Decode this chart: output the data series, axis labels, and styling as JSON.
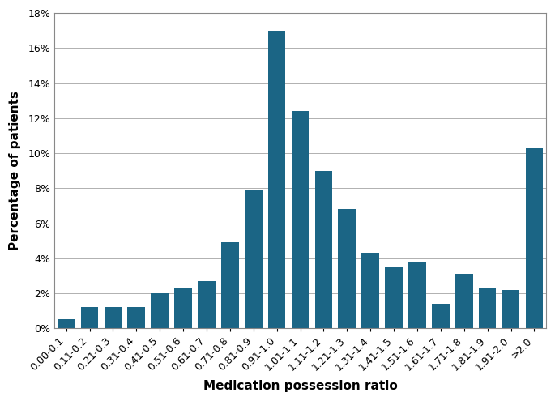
{
  "categories": [
    "0.00-0.1",
    "0.11-0.2",
    "0.21-0.3",
    "0.31-0.4",
    "0.41-0.5",
    "0.51-0.6",
    "0.61-0.7",
    "0.71-0.8",
    "0.81-0.9",
    "0.91-1.0",
    "1.01-1.1",
    "1.11-1.2",
    "1.21-1.3",
    "1.31-1.4",
    "1.41-1.5",
    "1.51-1.6",
    "1.61-1.7",
    "1.71-1.8",
    "1.81-1.9",
    "1.91-2.0",
    ">2.0"
  ],
  "values": [
    0.5,
    1.2,
    1.2,
    1.2,
    2.0,
    2.3,
    2.7,
    4.9,
    7.9,
    17.0,
    12.4,
    9.0,
    6.8,
    4.3,
    3.5,
    3.8,
    1.4,
    3.1,
    2.3,
    2.2,
    10.3
  ],
  "bar_color": "#1b6585",
  "xlabel": "Medication possession ratio",
  "ylabel": "Percentage of patients",
  "ylim": [
    0,
    18
  ],
  "yticks": [
    0,
    2,
    4,
    6,
    8,
    10,
    12,
    14,
    16,
    18
  ],
  "ytick_labels": [
    "0%",
    "2%",
    "4%",
    "6%",
    "8%",
    "10%",
    "12%",
    "14%",
    "16%",
    "18%"
  ],
  "xlabel_fontsize": 11,
  "ylabel_fontsize": 11,
  "tick_fontsize": 9,
  "bar_edge_color": "none",
  "grid_color": "#b0b0b0",
  "background_color": "#ffffff",
  "spine_color": "#888888"
}
